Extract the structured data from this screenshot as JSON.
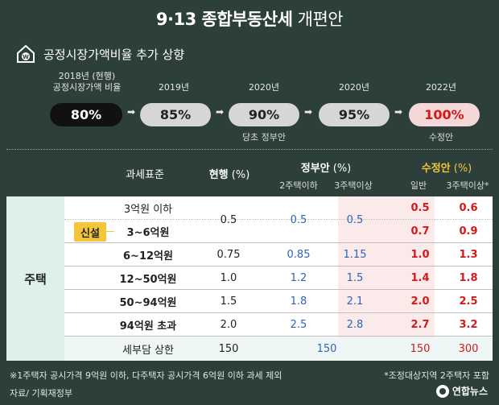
{
  "title": {
    "main": "9·13 종합부동산세",
    "sub": " 개편안"
  },
  "subheader": {
    "icon": "house-won-icon",
    "label": "공정시장가액비율 추가 상향"
  },
  "timeline": [
    {
      "year_line1": "2018년 (현행)",
      "year_line2": "공정시장가액 비율",
      "value": "80%",
      "note": "",
      "style": "dark"
    },
    {
      "year_line1": "2019년",
      "year_line2": "",
      "value": "85%",
      "note": "",
      "style": "gray"
    },
    {
      "year_line1": "2020년",
      "year_line2": "",
      "value": "90%",
      "note": "당초 정부안",
      "style": "gray"
    },
    {
      "year_line1": "2020년",
      "year_line2": "",
      "value": "95%",
      "note": "",
      "style": "gray"
    },
    {
      "year_line1": "2022년",
      "year_line2": "",
      "value": "100%",
      "note": "수정안",
      "style": "pink"
    }
  ],
  "table": {
    "headers": {
      "col_tax_base": "과세표준",
      "col_current": "현행",
      "col_current_unit": " (%)",
      "col_gov": "정부안",
      "col_gov_unit": " (%)",
      "col_gov_sub1": "2주택이하",
      "col_gov_sub2": "3주택이상",
      "col_rev": "수정안",
      "col_rev_unit": " (%)",
      "col_rev_sub1": "일반",
      "col_rev_sub2": "3주택이상*"
    },
    "category": "주택",
    "new_badge": "신설",
    "rows": [
      {
        "bracket": "3억원 이하",
        "current": "",
        "gov1": "",
        "gov2": "",
        "rev1": "0.5",
        "rev2": "0.6"
      },
      {
        "bracket": "3~6억원",
        "current": "",
        "gov1": "",
        "gov2": "",
        "rev1": "0.7",
        "rev2": "0.9"
      },
      {
        "bracket": "6~12억원",
        "current": "0.75",
        "gov1": "0.85",
        "gov2": "1.15",
        "rev1": "1.0",
        "rev2": "1.3"
      },
      {
        "bracket": "12~50억원",
        "current": "1.0",
        "gov1": "1.2",
        "gov2": "1.5",
        "rev1": "1.4",
        "rev2": "1.8"
      },
      {
        "bracket": "50~94억원",
        "current": "1.5",
        "gov1": "1.8",
        "gov2": "2.1",
        "rev1": "2.0",
        "rev2": "2.5"
      },
      {
        "bracket": "94억원 초과",
        "current": "2.0",
        "gov1": "2.5",
        "gov2": "2.8",
        "rev1": "2.7",
        "rev2": "3.2"
      },
      {
        "bracket": "세부담 상한",
        "current": "150",
        "gov1": "150",
        "gov2": "",
        "rev1": "150",
        "rev2": "300"
      }
    ],
    "merged_first_two": {
      "current": "0.5",
      "gov1": "0.5",
      "gov2": "0.5"
    }
  },
  "footnotes": {
    "left": "※1주택자 공시가격 9억원 이하, 다주택자 공시가격 6억원 이하 과세 제외",
    "right": "*조정대상지역 2주택자 포함",
    "source": "자료/ 기획재정부",
    "logo": "연합뉴스"
  },
  "colors": {
    "background": "#2c3f3a",
    "accent_yellow": "#f3c53a",
    "red": "#d11a1a",
    "blue": "#2f63b8",
    "category_bg": "#dff0ec"
  }
}
